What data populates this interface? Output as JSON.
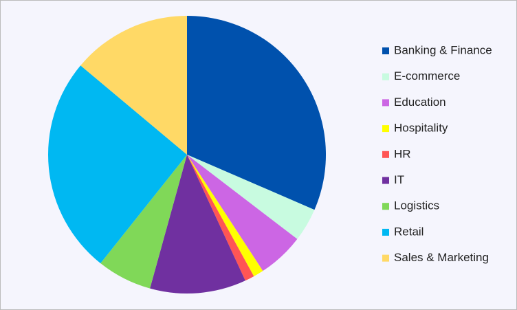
{
  "chart_data": {
    "type": "pie",
    "categories": [
      "Banking & Finance",
      "E-commerce",
      "Education",
      "Hospitality",
      "HR",
      "IT",
      "Logistics",
      "Retail",
      "Sales & Marketing"
    ],
    "values": [
      31.5,
      3.9,
      5.4,
      1.2,
      1.1,
      11.2,
      6.4,
      25.4,
      13.9
    ],
    "colors": [
      "#0051ad",
      "#c8fbe0",
      "#cc66e4",
      "#ffff00",
      "#ff5555",
      "#7030a0",
      "#80d858",
      "#00b8f2",
      "#ffd966"
    ],
    "legend": "right"
  }
}
